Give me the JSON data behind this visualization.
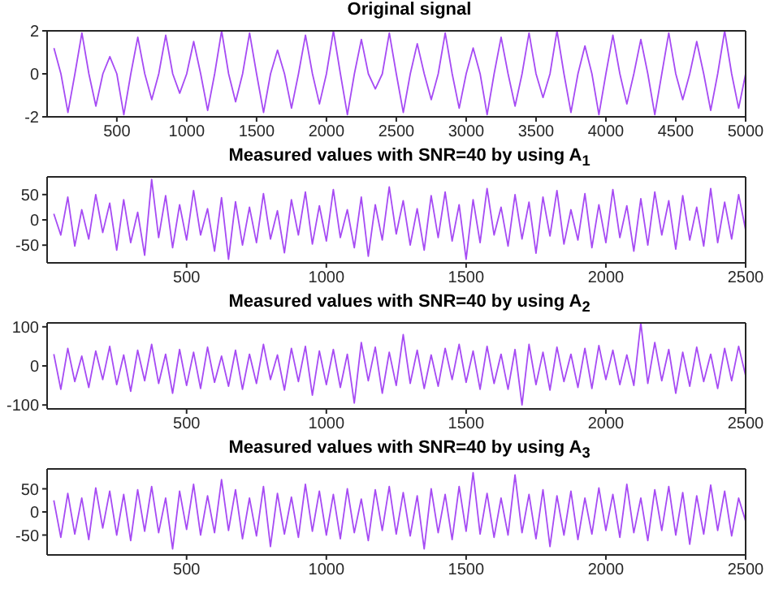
{
  "chart_data": [
    {
      "type": "line",
      "title": "Original signal",
      "x": [
        50,
        100,
        150,
        200,
        250,
        300,
        350,
        400,
        450,
        500,
        550,
        600,
        650,
        700,
        750,
        800,
        850,
        900,
        950,
        1000,
        1050,
        1100,
        1150,
        1200,
        1250,
        1300,
        1350,
        1400,
        1450,
        1500,
        1550,
        1600,
        1650,
        1700,
        1750,
        1800,
        1850,
        1900,
        1950,
        2000,
        2050,
        2100,
        2150,
        2200,
        2250,
        2300,
        2350,
        2400,
        2450,
        2500,
        2550,
        2600,
        2650,
        2700,
        2750,
        2800,
        2850,
        2900,
        2950,
        3000,
        3050,
        3100,
        3150,
        3200,
        3250,
        3300,
        3350,
        3400,
        3450,
        3500,
        3550,
        3600,
        3650,
        3700,
        3750,
        3800,
        3850,
        3900,
        3950,
        4000,
        4050,
        4100,
        4150,
        4200,
        4250,
        4300,
        4350,
        4400,
        4450,
        4500,
        4550,
        4600,
        4650,
        4700,
        4750,
        4800,
        4850,
        4900,
        4950,
        5000
      ],
      "series": [
        {
          "color": "#a64bf4",
          "values": [
            1.2,
            0,
            -1.8,
            0,
            1.9,
            0,
            -1.5,
            0,
            0.8,
            0,
            -1.9,
            0,
            1.7,
            0,
            -1.2,
            0,
            1.8,
            0,
            -0.9,
            0,
            1.5,
            0,
            -1.7,
            0,
            2,
            0,
            -1.3,
            0,
            1.9,
            0,
            -1.8,
            0,
            1.1,
            0,
            -1.6,
            0,
            1.8,
            0,
            -1.4,
            0,
            2,
            0,
            -1.9,
            0,
            1.6,
            0,
            -0.7,
            0,
            1.9,
            0,
            -1.8,
            0,
            1.4,
            0,
            -1.2,
            0,
            1.9,
            0,
            -1.6,
            0,
            1.2,
            0,
            -1.9,
            0,
            1.7,
            0,
            -1.5,
            0,
            1.9,
            0,
            -1.1,
            0,
            2,
            0,
            -1.8,
            0,
            1.3,
            0,
            -1.9,
            0,
            1.8,
            0,
            -1.4,
            0,
            1.6,
            0,
            -1.9,
            0,
            1.9,
            0,
            -1.2,
            0,
            1.5,
            0,
            -1.7,
            0,
            2,
            0,
            -1.6,
            0
          ]
        }
      ],
      "xlim": [
        1,
        5000
      ],
      "xticks": [
        500,
        1000,
        1500,
        2000,
        2500,
        3000,
        3500,
        4000,
        4500,
        5000
      ],
      "ylim": [
        -2,
        2
      ],
      "yticks": [
        -2,
        0,
        2
      ]
    },
    {
      "type": "line",
      "title": "Measured values with SNR=40 by using A$_{1}$",
      "x": [
        25,
        50,
        75,
        100,
        125,
        150,
        175,
        200,
        225,
        250,
        275,
        300,
        325,
        350,
        375,
        400,
        425,
        450,
        475,
        500,
        525,
        550,
        575,
        600,
        625,
        650,
        675,
        700,
        725,
        750,
        775,
        800,
        825,
        850,
        875,
        900,
        925,
        950,
        975,
        1000,
        1025,
        1050,
        1075,
        1100,
        1125,
        1150,
        1175,
        1200,
        1225,
        1250,
        1275,
        1300,
        1325,
        1350,
        1375,
        1400,
        1425,
        1450,
        1475,
        1500,
        1525,
        1550,
        1575,
        1600,
        1625,
        1650,
        1675,
        1700,
        1725,
        1750,
        1775,
        1800,
        1825,
        1850,
        1875,
        1900,
        1925,
        1950,
        1975,
        2000,
        2025,
        2050,
        2075,
        2100,
        2125,
        2150,
        2175,
        2200,
        2225,
        2250,
        2275,
        2300,
        2325,
        2350,
        2375,
        2400,
        2425,
        2450,
        2475,
        2500
      ],
      "series": [
        {
          "color": "#a64bf4",
          "values": [
            12,
            -30,
            45,
            -52,
            20,
            -38,
            50,
            -25,
            33,
            -60,
            40,
            -45,
            15,
            -70,
            80,
            -35,
            48,
            -55,
            30,
            -40,
            58,
            -30,
            22,
            -62,
            44,
            -78,
            36,
            -50,
            25,
            -45,
            52,
            -38,
            18,
            -65,
            40,
            -30,
            55,
            -48,
            28,
            -42,
            60,
            -35,
            20,
            -55,
            45,
            -72,
            30,
            -40,
            65,
            -28,
            38,
            -50,
            22,
            -60,
            48,
            -35,
            55,
            -42,
            30,
            -78,
            40,
            -45,
            62,
            -30,
            25,
            -52,
            50,
            -38,
            35,
            -66,
            45,
            -32,
            58,
            -48,
            20,
            -40,
            52,
            -55,
            30,
            -45,
            60,
            -35,
            28,
            -62,
            42,
            -50,
            55,
            -30,
            38,
            -58,
            48,
            -40,
            25,
            -52,
            62,
            -45,
            35,
            -38,
            50,
            -20
          ]
        }
      ],
      "xlim": [
        1,
        2500
      ],
      "xticks": [
        500,
        1000,
        1500,
        2000,
        2500
      ],
      "ylim": [
        -85,
        85
      ],
      "yticks": [
        -50,
        0,
        50
      ]
    },
    {
      "type": "line",
      "title": "Measured values with SNR=40 by using A$_{2}$",
      "x": [
        25,
        50,
        75,
        100,
        125,
        150,
        175,
        200,
        225,
        250,
        275,
        300,
        325,
        350,
        375,
        400,
        425,
        450,
        475,
        500,
        525,
        550,
        575,
        600,
        625,
        650,
        675,
        700,
        725,
        750,
        775,
        800,
        825,
        850,
        875,
        900,
        925,
        950,
        975,
        1000,
        1025,
        1050,
        1075,
        1100,
        1125,
        1150,
        1175,
        1200,
        1225,
        1250,
        1275,
        1300,
        1325,
        1350,
        1375,
        1400,
        1425,
        1450,
        1475,
        1500,
        1525,
        1550,
        1575,
        1600,
        1625,
        1650,
        1675,
        1700,
        1725,
        1750,
        1775,
        1800,
        1825,
        1850,
        1875,
        1900,
        1925,
        1950,
        1975,
        2000,
        2025,
        2050,
        2075,
        2100,
        2125,
        2150,
        2175,
        2200,
        2225,
        2250,
        2275,
        2300,
        2325,
        2350,
        2375,
        2400,
        2425,
        2450,
        2475,
        2500
      ],
      "series": [
        {
          "color": "#a64bf4",
          "values": [
            30,
            -60,
            45,
            -40,
            25,
            -55,
            38,
            -35,
            50,
            -48,
            28,
            -65,
            40,
            -38,
            55,
            -45,
            30,
            -70,
            42,
            -50,
            35,
            -58,
            48,
            -42,
            25,
            -52,
            40,
            -60,
            30,
            -45,
            55,
            -35,
            28,
            -62,
            45,
            -40,
            50,
            -75,
            38,
            -48,
            42,
            -55,
            30,
            -95,
            60,
            -38,
            48,
            -70,
            35,
            -50,
            80,
            -45,
            40,
            -58,
            28,
            -52,
            45,
            -35,
            55,
            -42,
            38,
            -60,
            50,
            -45,
            30,
            -60,
            42,
            -100,
            55,
            -48,
            35,
            -62,
            48,
            -40,
            30,
            -55,
            45,
            -58,
            52,
            -35,
            40,
            -48,
            28,
            -50,
            110,
            -45,
            60,
            -38,
            42,
            -70,
            35,
            -52,
            48,
            -40,
            30,
            -58,
            45,
            -38,
            50,
            -25
          ]
        }
      ],
      "xlim": [
        1,
        2500
      ],
      "xticks": [
        500,
        1000,
        1500,
        2000,
        2500
      ],
      "ylim": [
        -110,
        110
      ],
      "yticks": [
        -100,
        0,
        100
      ]
    },
    {
      "type": "line",
      "title": "Measured values with SNR=40 by using A$_{3}$",
      "x": [
        25,
        50,
        75,
        100,
        125,
        150,
        175,
        200,
        225,
        250,
        275,
        300,
        325,
        350,
        375,
        400,
        425,
        450,
        475,
        500,
        525,
        550,
        575,
        600,
        625,
        650,
        675,
        700,
        725,
        750,
        775,
        800,
        825,
        850,
        875,
        900,
        925,
        950,
        975,
        1000,
        1025,
        1050,
        1075,
        1100,
        1125,
        1150,
        1175,
        1200,
        1225,
        1250,
        1275,
        1300,
        1325,
        1350,
        1375,
        1400,
        1425,
        1450,
        1475,
        1500,
        1525,
        1550,
        1575,
        1600,
        1625,
        1650,
        1675,
        1700,
        1725,
        1750,
        1775,
        1800,
        1825,
        1850,
        1875,
        1900,
        1925,
        1950,
        1975,
        2000,
        2025,
        2050,
        2075,
        2100,
        2125,
        2150,
        2175,
        2200,
        2225,
        2250,
        2275,
        2300,
        2325,
        2350,
        2375,
        2400,
        2425,
        2450,
        2475,
        2500
      ],
      "series": [
        {
          "color": "#a64bf4",
          "values": [
            25,
            -55,
            40,
            -48,
            30,
            -60,
            52,
            -35,
            45,
            -50,
            38,
            -62,
            48,
            -42,
            55,
            -45,
            30,
            -80,
            45,
            -38,
            60,
            -50,
            35,
            -45,
            70,
            -40,
            48,
            -58,
            30,
            -52,
            55,
            -75,
            40,
            -48,
            32,
            -55,
            60,
            -42,
            45,
            -50,
            38,
            -58,
            50,
            -45,
            28,
            -62,
            48,
            -40,
            55,
            -48,
            42,
            -52,
            35,
            -80,
            50,
            -45,
            38,
            -60,
            55,
            -42,
            85,
            -48,
            40,
            -55,
            30,
            -50,
            80,
            -45,
            38,
            -58,
            48,
            -75,
            35,
            -50,
            45,
            -60,
            30,
            -48,
            52,
            -40,
            38,
            -55,
            60,
            -45,
            30,
            -62,
            48,
            -40,
            55,
            -50,
            42,
            -70,
            35,
            -48,
            58,
            -40,
            45,
            -52,
            30,
            -20
          ]
        }
      ],
      "xlim": [
        1,
        2500
      ],
      "xticks": [
        500,
        1000,
        1500,
        2000,
        2500
      ],
      "ylim": [
        -93,
        93
      ],
      "yticks": [
        -50,
        0,
        50
      ]
    }
  ]
}
